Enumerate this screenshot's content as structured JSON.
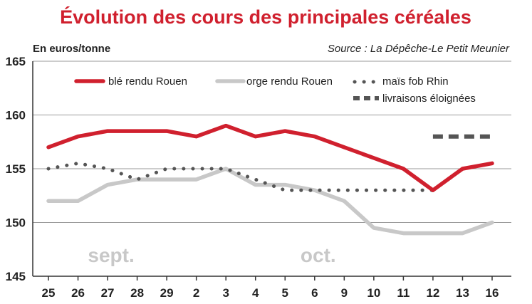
{
  "chart_data": {
    "type": "line",
    "title": "Évolution des cours des principales céréales",
    "ylabel": "En euros/tonne",
    "source": "Source : La Dépêche-Le Petit Meunier",
    "categories": [
      "25",
      "26",
      "27",
      "28",
      "29",
      "2",
      "3",
      "4",
      "5",
      "6",
      "9",
      "10",
      "11",
      "12",
      "13",
      "16"
    ],
    "months": [
      {
        "label": "sept.",
        "at": "27"
      },
      {
        "label": "oct.",
        "at": "6"
      }
    ],
    "ylim": [
      145,
      165
    ],
    "yticks": [
      "145",
      "150",
      "155",
      "160",
      "165"
    ],
    "grid": true,
    "legend_position": "top",
    "series": [
      {
        "name": "blé rendu Rouen",
        "color": "#d0202e",
        "style": "solid-thick",
        "values": [
          157,
          158,
          158.5,
          158.5,
          158.5,
          158,
          159,
          158,
          158.5,
          158,
          157,
          156,
          155,
          153,
          155,
          155.5
        ]
      },
      {
        "name": "orge rendu Rouen",
        "color": "#c8c8c8",
        "style": "solid-thick",
        "values": [
          152,
          152,
          153.5,
          154,
          154,
          154,
          155,
          153.5,
          153.5,
          153,
          152,
          149.5,
          149,
          149,
          149,
          150
        ]
      },
      {
        "name": "maïs fob Rhin",
        "color": "#555555",
        "style": "dotted",
        "values": [
          155,
          155.5,
          155,
          154,
          155,
          155,
          155,
          154,
          153,
          153,
          153,
          153,
          153,
          153,
          null,
          null
        ]
      },
      {
        "name": "livraisons éloignées",
        "color": "#555555",
        "style": "dashed",
        "values": [
          null,
          null,
          null,
          null,
          null,
          null,
          null,
          null,
          null,
          null,
          null,
          null,
          null,
          158,
          158,
          158
        ]
      }
    ]
  }
}
